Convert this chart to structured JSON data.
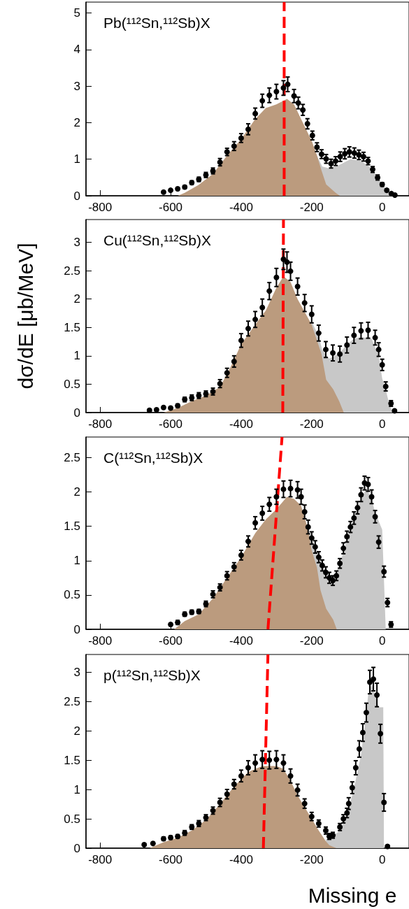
{
  "chart_data": [
    {
      "type": "scatter",
      "title": "Pb(¹¹²Sn,¹¹²Sb)X",
      "xlim": [
        -840,
        76
      ],
      "ylim": [
        0,
        5.3
      ],
      "xticks": [
        -800,
        -600,
        -400,
        -200,
        0
      ],
      "yticks": [
        0,
        1,
        2,
        3,
        4,
        5
      ],
      "series": [
        {
          "type": "area",
          "color": "#c8c8c8",
          "x": [
            -200,
            -190,
            -170,
            -150,
            -120,
            -90,
            -60,
            -30,
            0,
            20,
            30
          ],
          "values": [
            1.5,
            1.2,
            0.8,
            0.75,
            0.85,
            1.0,
            0.95,
            0.75,
            0.3,
            0.08,
            0
          ]
        },
        {
          "type": "area",
          "color": "#bb9b7e",
          "x": [
            -580,
            -560,
            -520,
            -480,
            -440,
            -400,
            -360,
            -330,
            -300,
            -270,
            -250,
            -230,
            -200,
            -185,
            -172,
            -159,
            -132,
            -120
          ],
          "values": [
            0,
            0.08,
            0.3,
            0.6,
            1.1,
            1.55,
            2.1,
            2.4,
            2.5,
            2.65,
            2.5,
            2.1,
            1.5,
            1.1,
            0.69,
            0.31,
            0.08,
            0
          ]
        },
        {
          "marker": "circle",
          "color": "#000000",
          "x": [
            -620,
            -600,
            -580,
            -560,
            -540,
            -520,
            -500,
            -480,
            -460,
            -440,
            -420,
            -400,
            -380,
            -360,
            -340,
            -320,
            -300,
            -280,
            -268,
            -250,
            -238,
            -225,
            -212,
            -198,
            -185,
            -172,
            -159,
            -145,
            -132,
            -119,
            -106,
            -93,
            -79,
            -66,
            -53,
            -40,
            -27,
            -13,
            0,
            13,
            26,
            36
          ],
          "values": [
            0.1,
            0.15,
            0.19,
            0.24,
            0.36,
            0.45,
            0.57,
            0.68,
            0.92,
            1.2,
            1.36,
            1.58,
            1.82,
            2.25,
            2.6,
            2.75,
            2.85,
            2.95,
            3.05,
            2.73,
            2.54,
            2.35,
            1.97,
            1.65,
            1.33,
            1.14,
            1.01,
            0.88,
            0.95,
            1.07,
            1.15,
            1.2,
            1.17,
            1.12,
            1.07,
            0.95,
            0.72,
            0.5,
            0.31,
            0.15,
            0.06,
            0.02
          ],
          "errors": [
            0.03,
            0.03,
            0.04,
            0.04,
            0.05,
            0.06,
            0.07,
            0.08,
            0.1,
            0.1,
            0.12,
            0.12,
            0.15,
            0.15,
            0.18,
            0.2,
            0.2,
            0.2,
            0.2,
            0.18,
            0.16,
            0.15,
            0.14,
            0.12,
            0.12,
            0.12,
            0.12,
            0.12,
            0.12,
            0.13,
            0.14,
            0.14,
            0.14,
            0.13,
            0.12,
            0.1,
            0.08,
            0.07,
            0.05,
            0.04,
            0.03,
            0.02
          ]
        },
        {
          "type": "line",
          "color": "#ff0000",
          "line_style": "dashed",
          "marker": "none",
          "x": [
            -278,
            -278
          ],
          "values": [
            0,
            5.3
          ]
        }
      ]
    },
    {
      "type": "scatter",
      "title": "Cu(¹¹²Sn,¹¹²Sb)X",
      "ylabel": "dσ/dE [μb/MeV]",
      "xlim": [
        -840,
        76
      ],
      "ylim": [
        0,
        3.4
      ],
      "xticks": [
        -800,
        -600,
        -400,
        -200,
        0
      ],
      "yticks": [
        0,
        0.5,
        1,
        1.5,
        2,
        2.5,
        3
      ],
      "series": [
        {
          "type": "area",
          "color": "#c8c8c8",
          "x": [
            -200,
            -180,
            -170,
            -150,
            -120,
            -100,
            -80,
            -60,
            -30,
            -10,
            0,
            10,
            20,
            30
          ],
          "values": [
            1.6,
            1.35,
            1.1,
            0.95,
            1.05,
            1.2,
            1.3,
            1.33,
            1.3,
            1.0,
            0.6,
            0.4,
            0.15,
            0
          ]
        },
        {
          "type": "area",
          "color": "#bb9b7e",
          "x": [
            -620,
            -580,
            -540,
            -500,
            -460,
            -430,
            -400,
            -360,
            -330,
            -300,
            -280,
            -260,
            -240,
            -200,
            -172,
            -159,
            -139,
            -122,
            -109
          ],
          "values": [
            0,
            0.08,
            0.2,
            0.3,
            0.45,
            0.8,
            1.2,
            1.55,
            1.8,
            2.2,
            2.4,
            2.3,
            2.0,
            1.55,
            1.03,
            0.58,
            0.41,
            0.2,
            0
          ]
        },
        {
          "marker": "circle",
          "color": "#000000",
          "x": [
            -660,
            -640,
            -620,
            -600,
            -580,
            -560,
            -540,
            -520,
            -500,
            -480,
            -460,
            -440,
            -420,
            -400,
            -380,
            -360,
            -340,
            -320,
            -300,
            -280,
            -270,
            -260,
            -240,
            -220,
            -200,
            -180,
            -160,
            -140,
            -120,
            -100,
            -80,
            -60,
            -40,
            -20,
            -10,
            0,
            10,
            25,
            35
          ],
          "values": [
            0.04,
            0.05,
            0.09,
            0.08,
            0.12,
            0.23,
            0.26,
            0.3,
            0.33,
            0.37,
            0.51,
            0.7,
            0.9,
            1.27,
            1.48,
            1.64,
            1.85,
            2.14,
            2.38,
            2.7,
            2.65,
            2.49,
            2.22,
            1.93,
            1.73,
            1.4,
            1.11,
            1.05,
            1.03,
            1.19,
            1.36,
            1.44,
            1.45,
            1.32,
            1.11,
            0.84,
            0.46,
            0.16,
            0.03
          ],
          "errors": [
            0.02,
            0.02,
            0.02,
            0.02,
            0.03,
            0.04,
            0.05,
            0.05,
            0.05,
            0.06,
            0.07,
            0.08,
            0.1,
            0.12,
            0.13,
            0.14,
            0.15,
            0.15,
            0.16,
            0.18,
            0.18,
            0.16,
            0.15,
            0.15,
            0.15,
            0.14,
            0.14,
            0.14,
            0.14,
            0.14,
            0.14,
            0.14,
            0.14,
            0.13,
            0.12,
            0.1,
            0.08,
            0.05,
            0.02
          ]
        },
        {
          "type": "line",
          "color": "#ff0000",
          "line_style": "dashed",
          "marker": "none",
          "x": [
            -282,
            -280
          ],
          "values": [
            0,
            3.4
          ]
        }
      ]
    },
    {
      "type": "scatter",
      "title": "C(¹¹²Sn,¹¹²Sb)X",
      "xlim": [
        -840,
        76
      ],
      "ylim": [
        0,
        2.8
      ],
      "xticks": [
        -800,
        -600,
        -400,
        -200,
        0
      ],
      "yticks": [
        0,
        0.5,
        1,
        1.5,
        2,
        2.5
      ],
      "series": [
        {
          "type": "area",
          "color": "#c8c8c8",
          "x": [
            -210,
            -200,
            -180,
            -160,
            -140,
            -120,
            -100,
            -80,
            -60,
            -45,
            -30,
            -20,
            0,
            10
          ],
          "values": [
            1.45,
            1.3,
            1.1,
            0.85,
            0.72,
            0.95,
            1.3,
            1.6,
            1.9,
            2.05,
            1.9,
            1.7,
            1.45,
            0
          ]
        },
        {
          "type": "area",
          "color": "#bb9b7e",
          "x": [
            -590,
            -560,
            -520,
            -480,
            -440,
            -400,
            -360,
            -330,
            -300,
            -270,
            -250,
            -230,
            -210,
            -200,
            -185,
            -175,
            -159,
            -139,
            -129
          ],
          "values": [
            0,
            0.12,
            0.22,
            0.45,
            0.75,
            1.05,
            1.4,
            1.6,
            1.75,
            1.93,
            1.9,
            1.8,
            1.45,
            1.15,
            0.9,
            0.57,
            0.3,
            0.14,
            0
          ]
        },
        {
          "marker": "circle",
          "color": "#000000",
          "x": [
            -600,
            -580,
            -560,
            -540,
            -520,
            -500,
            -480,
            -460,
            -440,
            -420,
            -400,
            -380,
            -360,
            -340,
            -320,
            -300,
            -280,
            -260,
            -240,
            -230,
            -220,
            -210,
            -200,
            -190,
            -180,
            -170,
            -160,
            -150,
            -140,
            -130,
            -120,
            -110,
            -100,
            -90,
            -80,
            -70,
            -60,
            -50,
            -40,
            -30,
            -20,
            -10,
            5,
            15,
            25
          ],
          "values": [
            0.07,
            0.1,
            0.22,
            0.25,
            0.26,
            0.37,
            0.51,
            0.61,
            0.78,
            0.91,
            1.08,
            1.28,
            1.55,
            1.69,
            1.82,
            1.93,
            2.04,
            2.05,
            2.03,
            1.93,
            1.71,
            1.49,
            1.33,
            1.2,
            1.05,
            0.93,
            0.83,
            0.75,
            0.71,
            0.78,
            0.96,
            1.18,
            1.35,
            1.49,
            1.62,
            1.77,
            1.96,
            2.13,
            2.11,
            1.93,
            1.64,
            1.27,
            0.84,
            0.39,
            0.07
          ],
          "errors": [
            0.02,
            0.03,
            0.03,
            0.03,
            0.03,
            0.04,
            0.05,
            0.05,
            0.06,
            0.06,
            0.07,
            0.08,
            0.09,
            0.1,
            0.1,
            0.11,
            0.12,
            0.12,
            0.12,
            0.11,
            0.1,
            0.1,
            0.09,
            0.09,
            0.08,
            0.08,
            0.08,
            0.08,
            0.07,
            0.07,
            0.07,
            0.08,
            0.08,
            0.08,
            0.09,
            0.09,
            0.1,
            0.1,
            0.1,
            0.1,
            0.09,
            0.09,
            0.08,
            0.06,
            0.04
          ]
        },
        {
          "type": "line",
          "color": "#ff0000",
          "line_style": "dashed",
          "marker": "none",
          "x": [
            -324,
            -284
          ],
          "values": [
            0,
            2.8
          ]
        }
      ]
    },
    {
      "type": "scatter",
      "title": "p(¹¹²Sn,¹¹²Sb)X",
      "xlabel": "Missing e",
      "xlim": [
        -840,
        76
      ],
      "ylim": [
        0,
        3.3
      ],
      "xticks": [
        -800,
        -600,
        -400,
        -200,
        0
      ],
      "yticks": [
        0,
        0.5,
        1,
        1.5,
        2,
        2.5,
        3
      ],
      "series": [
        {
          "type": "area",
          "color": "#c8c8c8",
          "x": [
            -160,
            -140,
            -120,
            -100,
            -85,
            -70,
            -60,
            -45,
            -40,
            -30,
            -20,
            -10,
            3,
            5
          ],
          "values": [
            0.15,
            0.2,
            0.3,
            0.55,
            0.9,
            1.3,
            1.6,
            2.3,
            2.6,
            2.8,
            2.6,
            2.4,
            2.4,
            0
          ]
        },
        {
          "type": "area",
          "color": "#bb9b7e",
          "x": [
            -660,
            -620,
            -580,
            -540,
            -500,
            -460,
            -420,
            -380,
            -340,
            -300,
            -280,
            -260,
            -240,
            -220,
            -200,
            -180,
            -160,
            -150,
            -130
          ],
          "values": [
            0,
            0.1,
            0.18,
            0.3,
            0.48,
            0.75,
            1.05,
            1.3,
            1.4,
            1.4,
            1.35,
            1.15,
            0.9,
            0.7,
            0.5,
            0.3,
            0.12,
            0.05,
            0
          ]
        },
        {
          "marker": "circle",
          "color": "#000000",
          "x": [
            -675,
            -650,
            -620,
            -600,
            -580,
            -560,
            -540,
            -520,
            -500,
            -480,
            -460,
            -440,
            -420,
            -400,
            -380,
            -360,
            -340,
            -320,
            -300,
            -280,
            -260,
            -240,
            -220,
            -200,
            -180,
            -160,
            -150,
            -140,
            -120,
            -110,
            -100,
            -95,
            -85,
            -75,
            -65,
            -55,
            -45,
            -35,
            -25,
            -15,
            -5,
            5,
            15
          ],
          "values": [
            0.06,
            0.08,
            0.16,
            0.18,
            0.2,
            0.26,
            0.36,
            0.42,
            0.52,
            0.64,
            0.78,
            0.92,
            1.09,
            1.23,
            1.37,
            1.45,
            1.51,
            1.5,
            1.51,
            1.45,
            1.23,
            0.99,
            0.76,
            0.54,
            0.42,
            0.3,
            0.2,
            0.22,
            0.36,
            0.5,
            0.6,
            0.76,
            1.03,
            1.37,
            1.69,
            1.97,
            2.31,
            2.83,
            2.88,
            2.61,
            1.95,
            0.78,
            0.03
          ],
          "errors": [
            0.02,
            0.02,
            0.03,
            0.03,
            0.03,
            0.04,
            0.04,
            0.05,
            0.05,
            0.06,
            0.07,
            0.08,
            0.08,
            0.1,
            0.12,
            0.14,
            0.15,
            0.15,
            0.15,
            0.14,
            0.12,
            0.1,
            0.08,
            0.07,
            0.06,
            0.06,
            0.05,
            0.05,
            0.06,
            0.07,
            0.08,
            0.1,
            0.1,
            0.12,
            0.14,
            0.15,
            0.16,
            0.2,
            0.2,
            0.2,
            0.16,
            0.15,
            0.02
          ]
        },
        {
          "type": "line",
          "color": "#ff0000",
          "line_style": "dashed",
          "marker": "none",
          "x": [
            -337,
            -324
          ],
          "values": [
            0,
            3.3
          ]
        }
      ]
    }
  ]
}
